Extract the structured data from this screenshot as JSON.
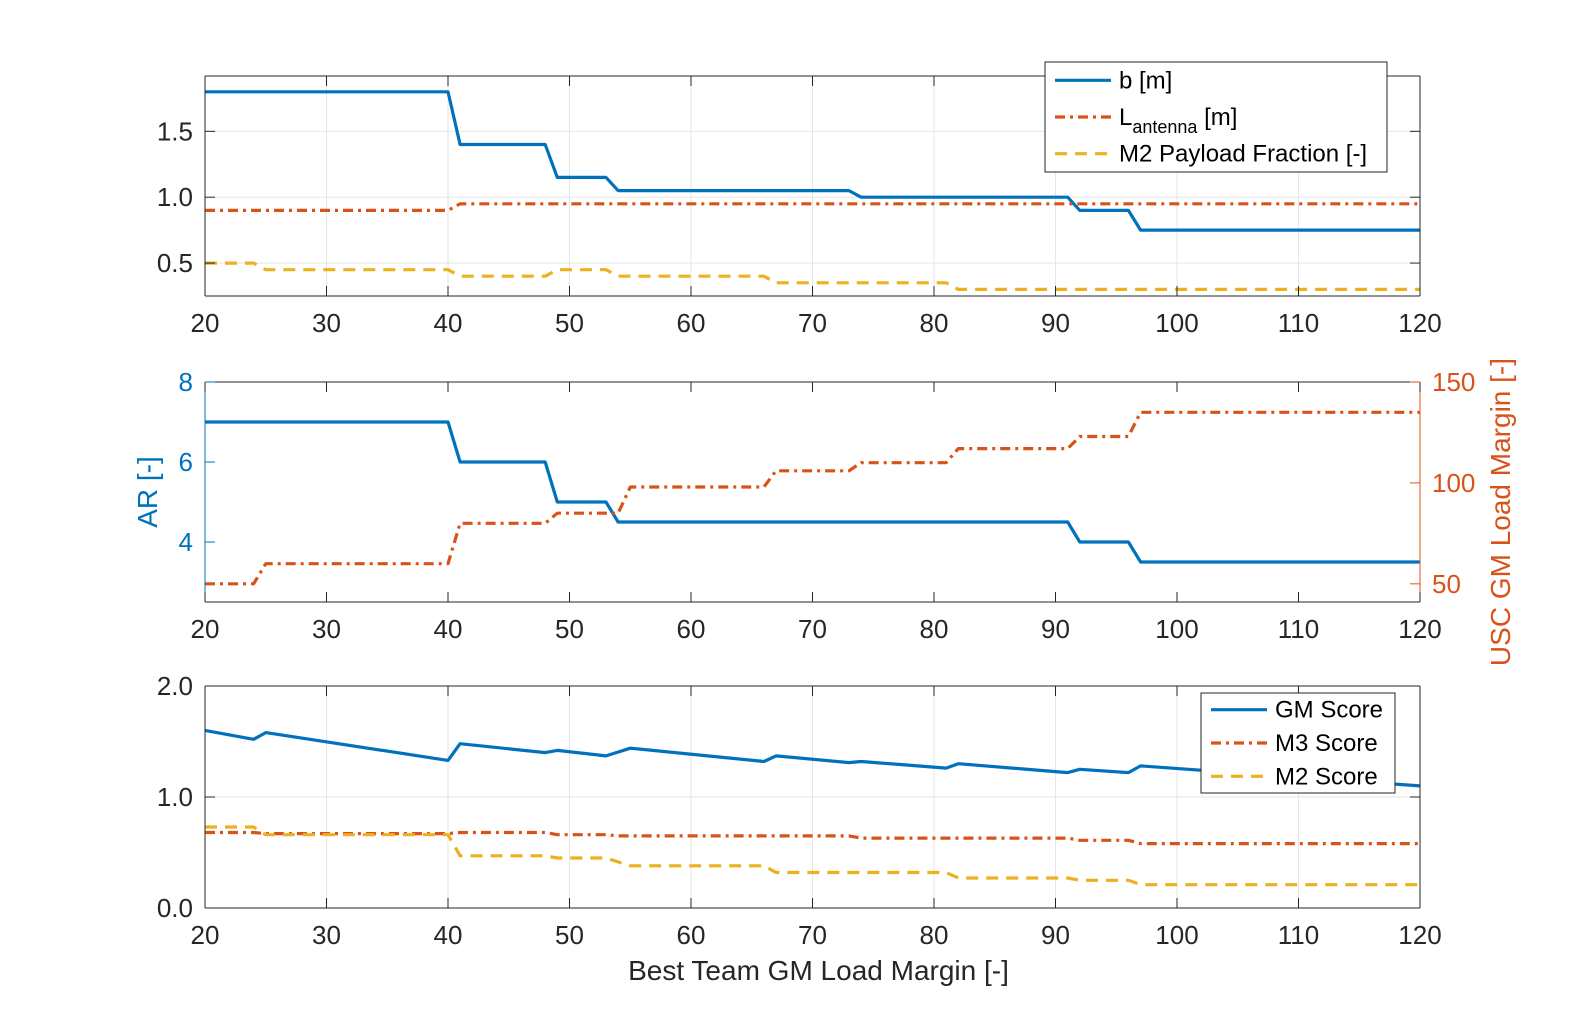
{
  "chart_data": [
    {
      "type": "line",
      "xlabel": "",
      "ylabel": "",
      "xlim": [
        20,
        120
      ],
      "ylim": [
        0.25,
        1.92
      ],
      "xticks": [
        "20",
        "30",
        "40",
        "50",
        "60",
        "70",
        "80",
        "90",
        "100",
        "110",
        "120"
      ],
      "yticks": [
        "0.5",
        "1.0",
        "1.5"
      ],
      "grid": true,
      "legend_position": "top-right",
      "legend": [
        {
          "label": "b [m]",
          "color": "#0072BD",
          "style": "solid"
        },
        {
          "label": "L",
          "sub": "antenna",
          "suffix": " [m]",
          "color": "#D95319",
          "style": "dashdot"
        },
        {
          "label": "M2 Payload Fraction [-]",
          "color": "#EDB120",
          "style": "dashed"
        }
      ],
      "series": [
        {
          "name": "b [m]",
          "color": "#0072BD",
          "style": "solid",
          "x": [
            20,
            40,
            41,
            48,
            49,
            53,
            54,
            73,
            74,
            91,
            92,
            96,
            97,
            120
          ],
          "y": [
            1.8,
            1.8,
            1.4,
            1.4,
            1.15,
            1.15,
            1.05,
            1.05,
            1.0,
            1.0,
            0.9,
            0.9,
            0.75,
            0.75
          ]
        },
        {
          "name": "L antenna [m]",
          "color": "#D95319",
          "style": "dashdot",
          "x": [
            20,
            40,
            41,
            120
          ],
          "y": [
            0.9,
            0.9,
            0.95,
            0.95
          ]
        },
        {
          "name": "M2 Payload Fraction [-]",
          "color": "#EDB120",
          "style": "dashed",
          "x": [
            20,
            24,
            25,
            40,
            41,
            48,
            49,
            53,
            54,
            66,
            67,
            81,
            82,
            120
          ],
          "y": [
            0.5,
            0.5,
            0.45,
            0.45,
            0.4,
            0.4,
            0.45,
            0.45,
            0.4,
            0.4,
            0.35,
            0.35,
            0.3,
            0.3
          ]
        }
      ]
    },
    {
      "type": "line",
      "xlabel": "",
      "ylabel": "AR [-]",
      "ylabel_right": "USC GM Load Margin [-]",
      "xlim": [
        20,
        120
      ],
      "ylim": [
        2.5,
        8
      ],
      "ylim_right": [
        41,
        150
      ],
      "xticks": [
        "20",
        "30",
        "40",
        "50",
        "60",
        "70",
        "80",
        "90",
        "100",
        "110",
        "120"
      ],
      "yticks": [
        "4",
        "6",
        "8"
      ],
      "yticks_right": [
        "50",
        "100",
        "150"
      ],
      "grid": false,
      "left_axis_color": "#0072BD",
      "right_axis_color": "#D95319",
      "series": [
        {
          "name": "AR [-]",
          "axis": "left",
          "color": "#0072BD",
          "style": "solid",
          "x": [
            20,
            40,
            41,
            48,
            49,
            53,
            54,
            91,
            92,
            96,
            97,
            120
          ],
          "y": [
            7.0,
            7.0,
            6.0,
            6.0,
            5.0,
            5.0,
            4.5,
            4.5,
            4.0,
            4.0,
            3.5,
            3.5
          ]
        },
        {
          "name": "USC GM Load Margin [-]",
          "axis": "right",
          "color": "#D95319",
          "style": "dashdot",
          "x": [
            20,
            24,
            25,
            40,
            41,
            48,
            49,
            54,
            55,
            66,
            67,
            73,
            74,
            81,
            82,
            91,
            92,
            96,
            97,
            120
          ],
          "y": [
            50,
            50,
            60,
            60,
            80,
            80,
            85,
            85,
            98,
            98,
            106,
            106,
            110,
            110,
            117,
            117,
            123,
            123,
            135,
            135
          ]
        }
      ]
    },
    {
      "type": "line",
      "xlabel": "Best Team GM Load Margin [-]",
      "ylabel": "",
      "xlim": [
        20,
        120
      ],
      "ylim": [
        0,
        2
      ],
      "xticks": [
        "20",
        "30",
        "40",
        "50",
        "60",
        "70",
        "80",
        "90",
        "100",
        "110",
        "120"
      ],
      "yticks": [
        "0.0",
        "1.0",
        "2.0"
      ],
      "grid": true,
      "legend_position": "top-right",
      "legend": [
        {
          "label": "GM Score",
          "color": "#0072BD",
          "style": "solid"
        },
        {
          "label": "M3 Score",
          "color": "#D95319",
          "style": "dashdot"
        },
        {
          "label": "M2 Score",
          "color": "#EDB120",
          "style": "dashed"
        }
      ],
      "series": [
        {
          "name": "GM Score",
          "color": "#0072BD",
          "style": "solid",
          "x": [
            20,
            24,
            25,
            40,
            41,
            48,
            49,
            53,
            55,
            66,
            67,
            73,
            74,
            81,
            82,
            91,
            92,
            96,
            97,
            120
          ],
          "y": [
            1.6,
            1.52,
            1.58,
            1.33,
            1.48,
            1.4,
            1.42,
            1.37,
            1.44,
            1.32,
            1.37,
            1.31,
            1.32,
            1.26,
            1.3,
            1.22,
            1.25,
            1.22,
            1.28,
            1.1
          ]
        },
        {
          "name": "M3 Score",
          "color": "#D95319",
          "style": "dashdot",
          "x": [
            20,
            24,
            25,
            40,
            41,
            48,
            49,
            53,
            54,
            73,
            74,
            91,
            92,
            96,
            97,
            120
          ],
          "y": [
            0.68,
            0.68,
            0.67,
            0.67,
            0.68,
            0.68,
            0.66,
            0.66,
            0.65,
            0.65,
            0.63,
            0.63,
            0.61,
            0.61,
            0.58,
            0.58
          ]
        },
        {
          "name": "M2 Score",
          "color": "#EDB120",
          "style": "dashed",
          "x": [
            20,
            24,
            25,
            40,
            41,
            48,
            49,
            53,
            55,
            66,
            67,
            81,
            82,
            91,
            92,
            96,
            97,
            120
          ],
          "y": [
            0.73,
            0.73,
            0.66,
            0.66,
            0.47,
            0.47,
            0.45,
            0.45,
            0.38,
            0.38,
            0.32,
            0.32,
            0.27,
            0.27,
            0.25,
            0.25,
            0.21,
            0.21
          ]
        }
      ]
    }
  ]
}
